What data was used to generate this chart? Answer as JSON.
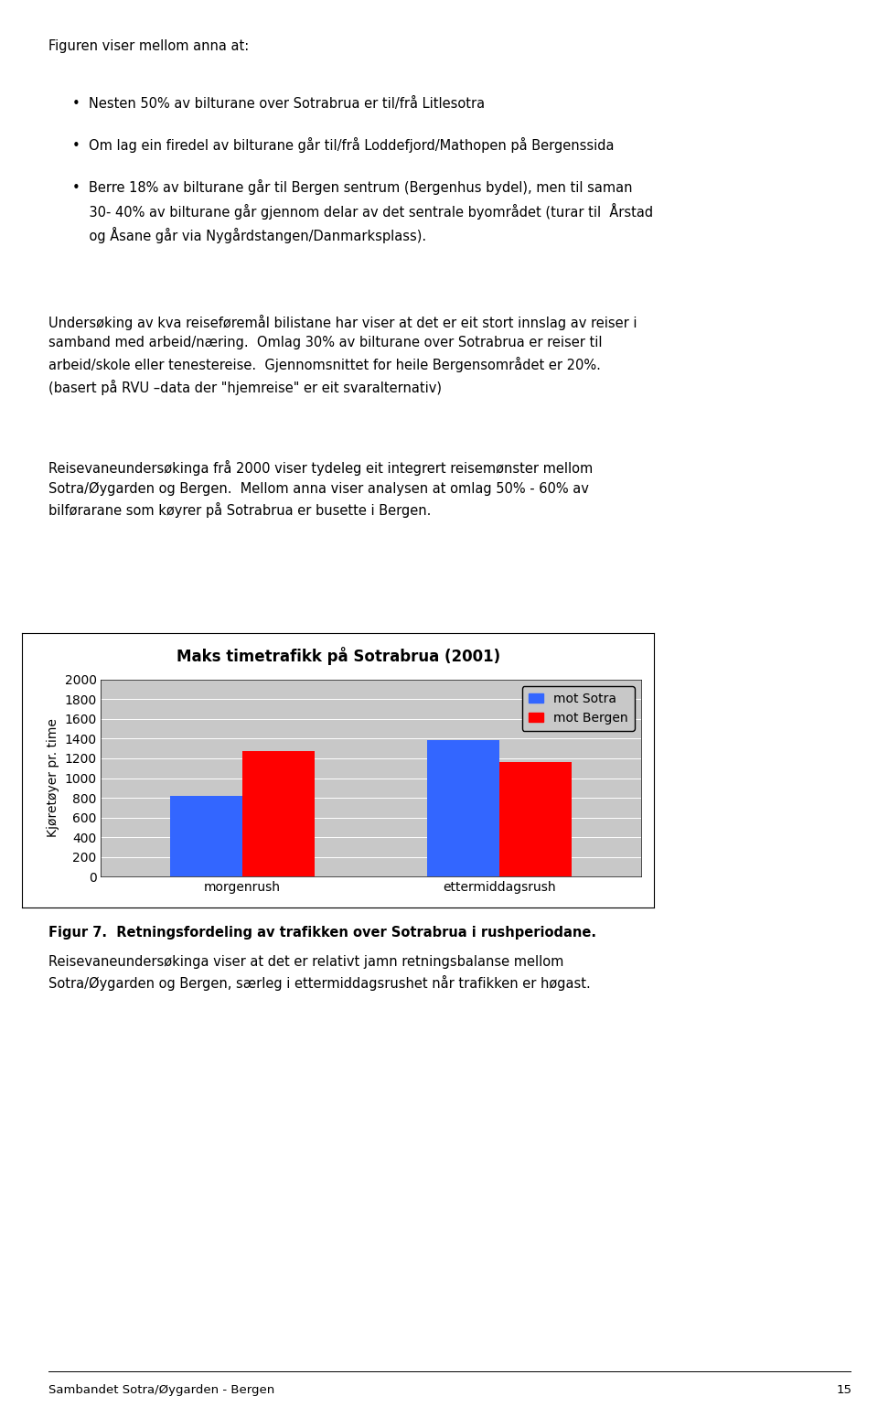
{
  "title": "Maks timetrafikk på Sotrabrua (2001)",
  "ylabel": "Kjøretøyer pr. time",
  "categories": [
    "morgenrush",
    "ettermiddagsrush"
  ],
  "series": [
    {
      "label": "mot Sotra",
      "color": "#3366ff",
      "values": [
        820,
        1390
      ]
    },
    {
      "label": "mot Bergen",
      "color": "#ff0000",
      "values": [
        1270,
        1160
      ]
    }
  ],
  "ylim": [
    0,
    2000
  ],
  "yticks": [
    0,
    200,
    400,
    600,
    800,
    1000,
    1200,
    1400,
    1600,
    1800,
    2000
  ],
  "chart_bg": "#c8c8c8",
  "page_bg": "#ffffff",
  "legend_bg": "#c8c8c8",
  "bar_width": 0.28,
  "title_fontsize": 12,
  "tick_fontsize": 10,
  "ylabel_fontsize": 10,
  "legend_fontsize": 10,
  "figur_label": "Figur 7.  Retningsfordeling av trafikken over Sotrabrua i rushperiodane.",
  "bottom_text": "Reisevaneundersøkinga viser at det er relativt jamn retningsbalanse mellom\nSotra/Øygarden og Bergen, særleg i ettermiddagsrushet når trafikken er høgast.",
  "footer_text": "Sambandet Sotra/Øygarden - Bergen",
  "footer_page": "15"
}
